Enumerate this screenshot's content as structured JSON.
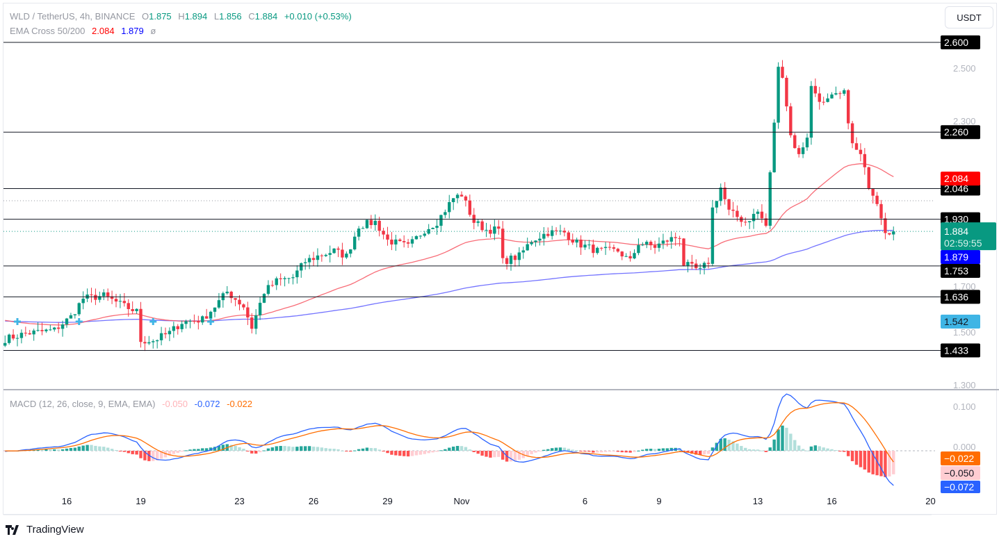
{
  "header": {
    "symbol": "WLD / TetherUS, 4h, BINANCE",
    "o_label": "O",
    "o": "1.875",
    "h_label": "H",
    "h": "1.894",
    "l_label": "L",
    "l": "1.856",
    "c_label": "C",
    "c": "1.884",
    "change": "+0.010 (+0.53%)",
    "ema_label": "EMA Cross 50/200",
    "ema50": "2.084",
    "ema200": "1.879",
    "ema_extra": "ø"
  },
  "macd_legend": {
    "label": "MACD (12, 26, close, 9, EMA, EMA)",
    "hist": "-0.050",
    "macd": "-0.072",
    "signal": "-0.022"
  },
  "currency_button": "USDT",
  "footer": {
    "brand": "TradingView"
  },
  "colors": {
    "up": "#089981",
    "down": "#f23645",
    "ema50": "#f7525f",
    "ema200": "#5b5bff",
    "macd": "#2962ff",
    "signal": "#ff6d00",
    "level": "#131722"
  },
  "chart_data": {
    "type": "candlestick",
    "symbol": "WLD/USDT",
    "interval": "4h",
    "price_axis": {
      "ylim": [
        1.25,
        2.64
      ],
      "ticks": [
        "2.500",
        "2.300",
        "1.700",
        "1.500",
        "1.300"
      ]
    },
    "x_ticks": [
      {
        "label": "16",
        "date": "2023-10-16"
      },
      {
        "label": "19",
        "date": "2023-10-19"
      },
      {
        "label": "23",
        "date": "2023-10-23"
      },
      {
        "label": "26",
        "date": "2023-10-26"
      },
      {
        "label": "29",
        "date": "2023-10-29"
      },
      {
        "label": "Nov",
        "date": "2023-11-01"
      },
      {
        "label": "6",
        "date": "2023-11-06"
      },
      {
        "label": "9",
        "date": "2023-11-09"
      },
      {
        "label": "13",
        "date": "2023-11-13"
      },
      {
        "label": "16",
        "date": "2023-11-16"
      },
      {
        "label": "20",
        "date": "2023-11-20"
      }
    ],
    "close_path": [
      [
        "2023-10-13T12:00",
        1.476
      ],
      [
        "2023-10-14T08:00",
        1.497
      ],
      [
        "2023-10-15T12:00",
        1.51
      ],
      [
        "2023-10-16T04:00",
        1.56
      ],
      [
        "2023-10-16T16:00",
        1.63
      ],
      [
        "2023-10-17T12:00",
        1.64
      ],
      [
        "2023-10-18T08:00",
        1.6
      ],
      [
        "2023-10-18T20:00",
        1.58
      ],
      [
        "2023-10-19T00:00",
        1.47
      ],
      [
        "2023-10-19T12:00",
        1.47
      ],
      [
        "2023-10-20T04:00",
        1.5
      ],
      [
        "2023-10-20T16:00",
        1.54
      ],
      [
        "2023-10-21T12:00",
        1.55
      ],
      [
        "2023-10-22T00:00",
        1.6
      ],
      [
        "2023-10-22T12:00",
        1.655
      ],
      [
        "2023-10-23T04:00",
        1.6
      ],
      [
        "2023-10-23T12:00",
        1.52
      ],
      [
        "2023-10-24T00:00",
        1.655
      ],
      [
        "2023-10-24T12:00",
        1.695
      ],
      [
        "2023-10-25T04:00",
        1.71
      ],
      [
        "2023-10-25T16:00",
        1.77
      ],
      [
        "2023-10-26T04:00",
        1.79
      ],
      [
        "2023-10-26T20:00",
        1.81
      ],
      [
        "2023-10-27T08:00",
        1.79
      ],
      [
        "2023-10-27T20:00",
        1.905
      ],
      [
        "2023-10-28T12:00",
        1.92
      ],
      [
        "2023-10-29T00:00",
        1.85
      ],
      [
        "2023-10-29T20:00",
        1.826
      ],
      [
        "2023-10-30T12:00",
        1.89
      ],
      [
        "2023-10-31T00:00",
        1.92
      ],
      [
        "2023-10-31T16:00",
        2.01
      ],
      [
        "2023-11-01T00:00",
        2.024
      ],
      [
        "2023-11-01T12:00",
        1.92
      ],
      [
        "2023-11-02T00:00",
        1.89
      ],
      [
        "2023-11-02T12:00",
        1.89
      ],
      [
        "2023-11-02T16:00",
        1.77
      ],
      [
        "2023-11-03T08:00",
        1.79
      ],
      [
        "2023-11-03T20:00",
        1.85
      ],
      [
        "2023-11-04T12:00",
        1.88
      ],
      [
        "2023-11-05T04:00",
        1.88
      ],
      [
        "2023-11-05T16:00",
        1.84
      ],
      [
        "2023-11-06T12:00",
        1.81
      ],
      [
        "2023-11-07T08:00",
        1.81
      ],
      [
        "2023-11-07T20:00",
        1.77
      ],
      [
        "2023-11-08T04:00",
        1.84
      ],
      [
        "2023-11-08T20:00",
        1.826
      ],
      [
        "2023-11-09T08:00",
        1.85
      ],
      [
        "2023-11-09T20:00",
        1.866
      ],
      [
        "2023-11-10T00:00",
        1.76
      ],
      [
        "2023-11-10T16:00",
        1.734
      ],
      [
        "2023-11-11T00:00",
        1.77
      ],
      [
        "2023-11-11T04:00",
        1.97
      ],
      [
        "2023-11-11T12:00",
        2.05
      ],
      [
        "2023-11-11T20:00",
        1.958
      ],
      [
        "2023-11-12T12:00",
        1.92
      ],
      [
        "2023-11-13T00:00",
        1.958
      ],
      [
        "2023-11-13T08:00",
        1.905
      ],
      [
        "2023-11-13T12:00",
        2.1
      ],
      [
        "2023-11-13T20:00",
        2.5
      ],
      [
        "2023-11-14T00:00",
        2.48
      ],
      [
        "2023-11-14T08:00",
        2.247
      ],
      [
        "2023-11-14T16:00",
        2.17
      ],
      [
        "2023-11-15T00:00",
        2.247
      ],
      [
        "2023-11-15T04:00",
        2.43
      ],
      [
        "2023-11-15T16:00",
        2.366
      ],
      [
        "2023-11-16T00:00",
        2.39
      ],
      [
        "2023-11-16T12:00",
        2.405
      ],
      [
        "2023-11-16T20:00",
        2.21
      ],
      [
        "2023-11-17T04:00",
        2.17
      ],
      [
        "2023-11-17T12:00",
        2.06
      ],
      [
        "2023-11-17T20:00",
        2.0
      ],
      [
        "2023-11-18T04:00",
        1.89
      ],
      [
        "2023-11-18T12:00",
        1.884
      ]
    ],
    "horizontal_levels": [
      "2.600",
      "2.260",
      "2.046",
      "1.930",
      "1.753",
      "1.636",
      "1.433"
    ],
    "dotted_levels": [
      2.0
    ],
    "price_tags": {
      "last": {
        "value": "1.884",
        "countdown": "02:59:55",
        "color": "#089981"
      },
      "ema50": {
        "value": "2.084",
        "color": "#ff0000"
      },
      "ema200": {
        "value": "1.879",
        "color": "#0000ff"
      },
      "cross": {
        "value": "1.542",
        "color": "#3fb5e5"
      }
    },
    "cross_markers": [
      "2023-10-14T00:00",
      "2023-10-16T12:00",
      "2023-10-19T12:00",
      "2023-10-21T20:00"
    ],
    "macd_axis": {
      "ticks": [
        "0.100",
        "0.000"
      ]
    },
    "macd_tags": {
      "signal": {
        "value": "−0.022",
        "color": "#ff6d00"
      },
      "hist": {
        "value": "−0.050",
        "color": "#ffcdd2"
      },
      "macd": {
        "value": "−0.072",
        "color": "#2962ff"
      }
    }
  }
}
